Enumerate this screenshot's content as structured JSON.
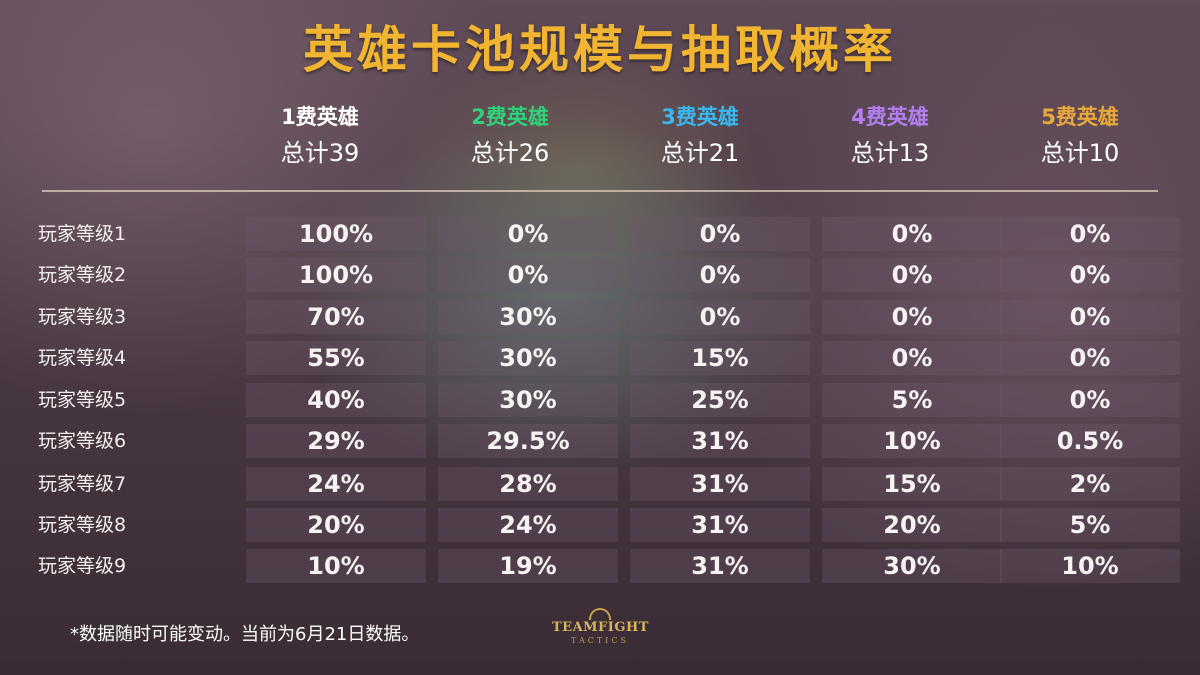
{
  "title": "英雄卡池规模与抽取概率",
  "colors": {
    "title": "#f2b531",
    "tier1": "#ffffff",
    "tier2": "#2fd27a",
    "tier3": "#39b8f0",
    "tier4": "#b27ef0",
    "tier5": "#e8a83a"
  },
  "columns": [
    {
      "name": "1费英雄",
      "total": "总计39",
      "color": "#ffffff"
    },
    {
      "name": "2费英雄",
      "total": "总计26",
      "color": "#2fd27a"
    },
    {
      "name": "3费英雄",
      "total": "总计21",
      "color": "#39b8f0"
    },
    {
      "name": "4费英雄",
      "total": "总计13",
      "color": "#b27ef0"
    },
    {
      "name": "5费英雄",
      "total": "总计10",
      "color": "#e8a83a"
    }
  ],
  "rows": [
    {
      "label": "玩家等级1",
      "values": [
        "100%",
        "0%",
        "0%",
        "0%",
        "0%"
      ]
    },
    {
      "label": "玩家等级2",
      "values": [
        "100%",
        "0%",
        "0%",
        "0%",
        "0%"
      ]
    },
    {
      "label": "玩家等级3",
      "values": [
        "70%",
        "30%",
        "0%",
        "0%",
        "0%"
      ]
    },
    {
      "label": "玩家等级4",
      "values": [
        "55%",
        "30%",
        "15%",
        "0%",
        "0%"
      ]
    },
    {
      "label": "玩家等级5",
      "values": [
        "40%",
        "30%",
        "25%",
        "5%",
        "0%"
      ]
    },
    {
      "label": "玩家等级6",
      "values": [
        "29%",
        "29.5%",
        "31%",
        "10%",
        "0.5%"
      ]
    },
    {
      "label": "玩家等级7",
      "values": [
        "24%",
        "28%",
        "31%",
        "15%",
        "2%"
      ]
    },
    {
      "label": "玩家等级8",
      "values": [
        "20%",
        "24%",
        "31%",
        "20%",
        "5%"
      ]
    },
    {
      "label": "玩家等级9",
      "values": [
        "10%",
        "19%",
        "31%",
        "30%",
        "10%"
      ]
    }
  ],
  "footnote": "*数据随时可能变动。当前为6月21日数据。",
  "logo": {
    "word": "TEAMFIGHT",
    "sub": "TACTICS"
  }
}
